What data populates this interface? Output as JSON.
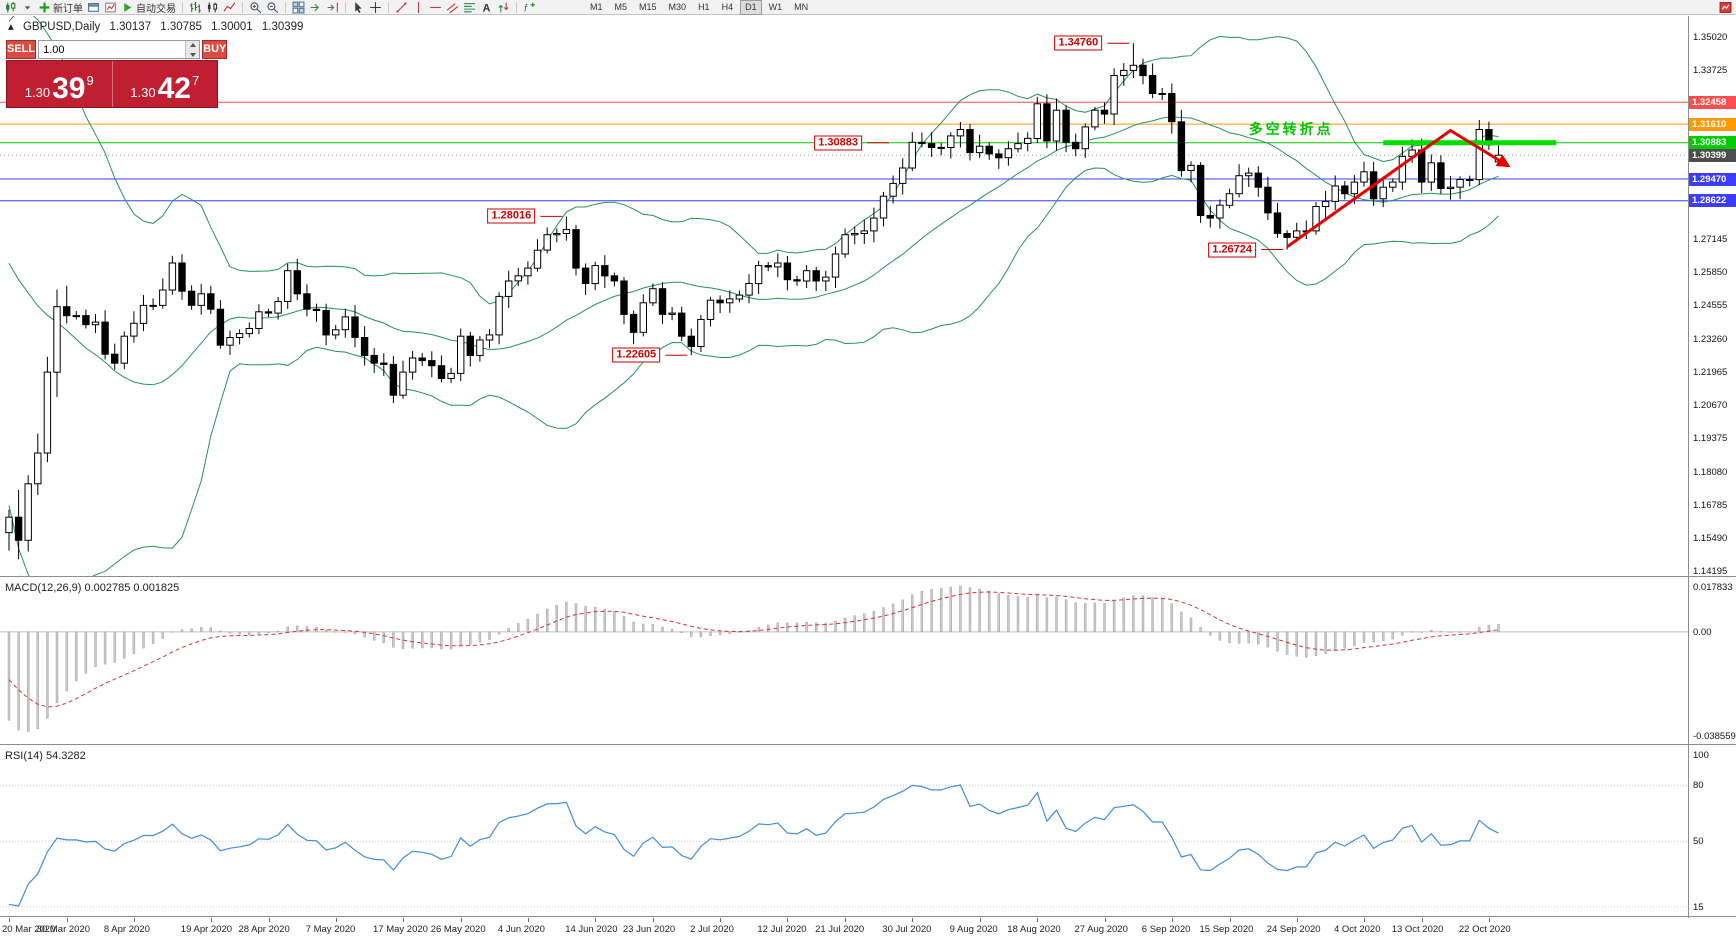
{
  "toolbar": {
    "new_order_label": "新订单",
    "autotrading_label": "自动交易",
    "items": [
      "chart-type-icon",
      "caret-down-icon",
      "new-order-button",
      "chart-window-icon",
      "profile-icon",
      "autotrading-button",
      "|",
      "bar-chart-icon",
      "candlestick-chart-icon",
      "line-chart-icon",
      "|",
      "zoom-in-icon",
      "zoom-out-icon",
      "|",
      "tile-windows-icon",
      "auto-scroll-icon",
      "chart-shift-icon",
      "|",
      "cursor-icon",
      "crosshair-icon",
      "|",
      "trendline-icon",
      "vertical-line-icon",
      "horizontal-line-icon",
      "equidistant-channel-icon",
      "fibonacci-icon",
      "text-label-icon",
      "arrow-tools-icon",
      "|",
      "indicators-icon"
    ],
    "timeframes": [
      "M1",
      "M5",
      "M15",
      "M30",
      "H1",
      "H4",
      "D1",
      "W1",
      "MN"
    ],
    "active_timeframe": "D1"
  },
  "symbol_header": {
    "marker": "▴",
    "symbol": "GBPUSD,Daily",
    "open": "1.30137",
    "high": "1.30785",
    "low": "1.30001",
    "close": "1.30399"
  },
  "trade_panel": {
    "sell_label": "SELL",
    "buy_label": "BUY",
    "volume": "1.00",
    "sell_price": {
      "small": "1.30",
      "big": "39",
      "sup": "9"
    },
    "buy_price": {
      "small": "1.30",
      "big": "42",
      "sup": "7"
    }
  },
  "price_axis": {
    "labels": [
      {
        "text": "1.35020",
        "price": 1.3502
      },
      {
        "text": "1.33725",
        "price": 1.33725
      },
      {
        "text": "1.27145",
        "price": 1.27145
      },
      {
        "text": "1.25850",
        "price": 1.2585
      },
      {
        "text": "1.24555",
        "price": 1.24555
      },
      {
        "text": "1.23260",
        "price": 1.2326
      },
      {
        "text": "1.21965",
        "price": 1.21965
      },
      {
        "text": "1.20670",
        "price": 1.2067
      },
      {
        "text": "1.19375",
        "price": 1.19375
      },
      {
        "text": "1.18080",
        "price": 1.1808
      },
      {
        "text": "1.16785",
        "price": 1.16785
      },
      {
        "text": "1.15490",
        "price": 1.1549
      },
      {
        "text": "1.14195",
        "price": 1.14195
      }
    ],
    "tags": [
      {
        "text": "1.32458",
        "price": 1.32458,
        "color": "#ff4d4d",
        "name": "resistance-price-tag"
      },
      {
        "text": "1.31610",
        "price": 1.3161,
        "color": "#ff9900",
        "name": "resistance-price-tag"
      },
      {
        "text": "1.30883",
        "price": 1.30883,
        "color": "#00cc00",
        "name": "pivot-price-tag"
      },
      {
        "text": "1.30399",
        "price": 1.30399,
        "color": "#4d4d4d",
        "name": "current-price-tag"
      },
      {
        "text": "1.29470",
        "price": 1.2947,
        "color": "#3c3cff",
        "name": "support-price-tag"
      },
      {
        "text": "1.28622",
        "price": 1.28622,
        "color": "#3c3cff",
        "name": "support-price-tag"
      }
    ]
  },
  "time_axis": {
    "labels": [
      {
        "text": "20 Mar 2020",
        "bar": 0
      },
      {
        "text": "30 Mar 2020",
        "bar": 6
      },
      {
        "text": "8 Apr 2020",
        "bar": 13
      },
      {
        "text": "19 Apr 2020",
        "bar": 21
      },
      {
        "text": "28 Apr 2020",
        "bar": 27
      },
      {
        "text": "7 May 2020",
        "bar": 34
      },
      {
        "text": "17 May 2020",
        "bar": 41
      },
      {
        "text": "26 May 2020",
        "bar": 47
      },
      {
        "text": "4 Jun 2020",
        "bar": 54
      },
      {
        "text": "14 Jun 2020",
        "bar": 61
      },
      {
        "text": "23 Jun 2020",
        "bar": 67
      },
      {
        "text": "2 Jul 2020",
        "bar": 74
      },
      {
        "text": "12 Jul 2020",
        "bar": 81
      },
      {
        "text": "21 Jul 2020",
        "bar": 87
      },
      {
        "text": "30 Jul 2020",
        "bar": 94
      },
      {
        "text": "9 Aug 2020",
        "bar": 101
      },
      {
        "text": "18 Aug 2020",
        "bar": 107
      },
      {
        "text": "27 Aug 2020",
        "bar": 114
      },
      {
        "text": "6 Sep 2020",
        "bar": 121
      },
      {
        "text": "15 Sep 2020",
        "bar": 127
      },
      {
        "text": "24 Sep 2020",
        "bar": 134
      },
      {
        "text": "4 Oct 2020",
        "bar": 141
      },
      {
        "text": "13 Oct 2020",
        "bar": 147
      },
      {
        "text": "22 Oct 2020",
        "bar": 154
      }
    ]
  },
  "main_chart": {
    "current_price": 1.30399,
    "hlines": [
      {
        "price": 1.32458,
        "color": "#ff4d4d"
      },
      {
        "price": 1.3161,
        "color": "#ff9900"
      },
      {
        "price": 1.30883,
        "color": "#00cc00"
      },
      {
        "price": 1.2947,
        "color": "#3c3cff"
      },
      {
        "price": 1.28622,
        "color": "#3c3cff"
      }
    ],
    "annotations": [
      {
        "text": "1.34760",
        "price": 1.3476,
        "bar": 117
      },
      {
        "text": "1.30883",
        "price": 1.30883,
        "bar": 92
      },
      {
        "text": "1.28016",
        "price": 1.28016,
        "bar": 58
      },
      {
        "text": "1.26724",
        "price": 1.26724,
        "bar": 133
      },
      {
        "text": "1.22605",
        "price": 1.22605,
        "bar": 71
      }
    ],
    "pivot_label": {
      "text": "多空转折点",
      "bar": 129,
      "color": "#00c300"
    },
    "highlight_segment": {
      "price": 1.30883,
      "bar_start": 143,
      "bar_end": 161,
      "color": "#00dd00"
    },
    "trend_arrow": {
      "color": "#e60000",
      "points": [
        [
          133,
          1.2683
        ],
        [
          150,
          1.3136
        ],
        [
          156,
          1.2998
        ]
      ]
    }
  },
  "indicators": {
    "macd": {
      "label": "MACD(12,26,9) 0.002785 0.001825",
      "range": [
        0.017833,
        -0.038559
      ],
      "axis_labels": [
        "0.017833",
        "0.00",
        "-0.038559"
      ]
    },
    "rsi": {
      "label": "RSI(14) 54.3282",
      "range": [
        100,
        10
      ],
      "levels": [
        80,
        50,
        15
      ],
      "axis_labels": [
        "100",
        "80",
        "50",
        "15"
      ]
    }
  },
  "chart_data": {
    "type": "candlestick",
    "symbol": "GBPUSD",
    "timeframe": "Daily",
    "overlays": [
      "Bollinger Bands (20,2)"
    ],
    "pre_closes": [
      1.299,
      1.303,
      1.2995,
      1.293,
      1.289,
      1.291,
      1.295,
      1.2955,
      1.296,
      1.3045,
      1.305,
      1.3035,
      1.299,
      1.292,
      1.2905,
      1.286,
      1.282,
      1.279,
      1.288,
      1.293,
      1.3,
      1.305,
      1.311,
      1.3055,
      1.2905,
      1.285,
      1.292,
      1.283,
      1.275,
      1.262,
      1.251,
      1.228,
      1.206,
      1.182,
      1.157
    ],
    "closes": [
      1.163,
      1.154,
      1.176,
      1.188,
      1.2195,
      1.245,
      1.2415,
      1.2415,
      1.238,
      1.239,
      1.2265,
      1.223,
      1.2335,
      1.2385,
      1.2455,
      1.2455,
      1.2515,
      1.262,
      1.251,
      1.2455,
      1.25,
      1.244,
      1.23,
      1.233,
      1.2345,
      1.2365,
      1.243,
      1.2425,
      1.247,
      1.259,
      1.25,
      1.244,
      1.2435,
      1.234,
      1.236,
      1.241,
      1.233,
      1.226,
      1.223,
      1.2225,
      1.2105,
      1.2195,
      1.225,
      1.224,
      1.222,
      1.217,
      1.219,
      1.2335,
      1.226,
      1.232,
      1.234,
      1.249,
      1.255,
      1.257,
      1.26,
      1.267,
      1.273,
      1.2735,
      1.275,
      1.26,
      1.254,
      1.261,
      1.257,
      1.255,
      1.242,
      1.235,
      1.2465,
      1.252,
      1.242,
      1.2425,
      1.2335,
      1.2295,
      1.24,
      1.2475,
      1.2465,
      1.248,
      1.2495,
      1.254,
      1.261,
      1.2605,
      1.262,
      1.2555,
      1.255,
      1.259,
      1.255,
      1.2565,
      1.2655,
      1.273,
      1.2735,
      1.2745,
      1.2795,
      1.288,
      1.293,
      1.299,
      1.309,
      1.3085,
      1.307,
      1.307,
      1.3115,
      1.314,
      1.305,
      1.3075,
      1.3045,
      1.303,
      1.3065,
      1.3085,
      1.3105,
      1.324,
      1.3095,
      1.3215,
      1.309,
      1.3065,
      1.315,
      1.3215,
      1.32,
      1.335,
      1.337,
      1.339,
      1.335,
      1.328,
      1.328,
      1.317,
      1.298,
      1.3,
      1.2805,
      1.2795,
      1.2845,
      1.289,
      1.296,
      1.297,
      1.2915,
      1.2815,
      1.2735,
      1.272,
      1.2745,
      1.2745,
      1.284,
      1.286,
      1.292,
      1.289,
      1.2935,
      1.2975,
      1.287,
      1.2915,
      1.2935,
      1.3035,
      1.306,
      1.2935,
      1.301,
      1.291,
      1.2915,
      1.2945,
      1.2945,
      1.314,
      1.308,
      1.30399
    ],
    "overrides": {
      "0": {
        "o": 1.157,
        "l": 1.15
      },
      "1": {
        "l": 1.1466
      },
      "17": {
        "h": 1.2648
      },
      "40": {
        "l": 1.2075
      },
      "58": {
        "h": 1.28016
      },
      "71": {
        "l": 1.22605
      },
      "107": {
        "h": 1.32667
      },
      "117": {
        "h": 1.3476
      },
      "133": {
        "l": 1.26724
      },
      "153": {
        "h": 1.3177
      },
      "155": {
        "o": 1.30137,
        "h": 1.30785,
        "l": 1.30001,
        "c": 1.30399
      }
    }
  }
}
